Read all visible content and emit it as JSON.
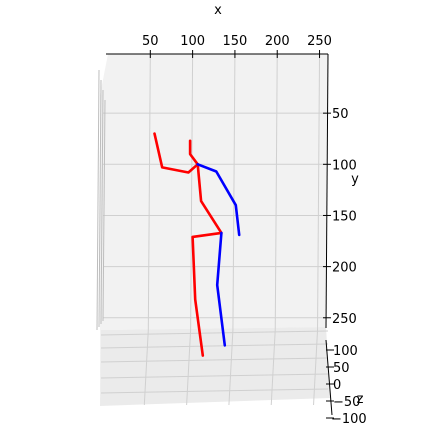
{
  "chart_data": {
    "type": "line",
    "projection": "3d",
    "xlabel": "x",
    "ylabel": "y",
    "zlabel": "z",
    "x_ticks": [
      "50",
      "100",
      "150",
      "200",
      "250"
    ],
    "y_ticks": [
      "50",
      "100",
      "150",
      "200",
      "250"
    ],
    "z_ticks": [
      "100",
      "50",
      "0",
      "−50",
      "−100"
    ],
    "xlim": [
      0,
      260
    ],
    "ylim": [
      0,
      260
    ],
    "zlim": [
      -100,
      100
    ],
    "grid": true,
    "colors": {
      "left": "#0000ff",
      "right": "#ff0000",
      "pane": "#f2f2f2",
      "grid": "#d0d0d0"
    },
    "series": [
      {
        "color": "#ff0000",
        "points": [
          [
            55,
            70
          ],
          [
            64,
            103
          ],
          [
            95,
            108
          ],
          [
            106,
            100
          ]
        ]
      },
      {
        "color": "#ff0000",
        "points": [
          [
            97,
            77
          ],
          [
            97,
            90
          ],
          [
            106,
            100
          ]
        ]
      },
      {
        "color": "#ff0000",
        "points": [
          [
            106,
            100
          ],
          [
            110,
            136
          ],
          [
            134,
            167
          ],
          [
            100,
            171
          ],
          [
            103,
            232
          ],
          [
            112,
            287
          ]
        ]
      },
      {
        "color": "#0000ff",
        "points": [
          [
            106,
            100
          ],
          [
            128,
            107
          ],
          [
            151,
            140
          ],
          [
            155,
            169
          ]
        ]
      },
      {
        "color": "#0000ff",
        "points": [
          [
            134,
            167
          ],
          [
            129,
            218
          ],
          [
            138,
            277
          ]
        ]
      }
    ]
  }
}
